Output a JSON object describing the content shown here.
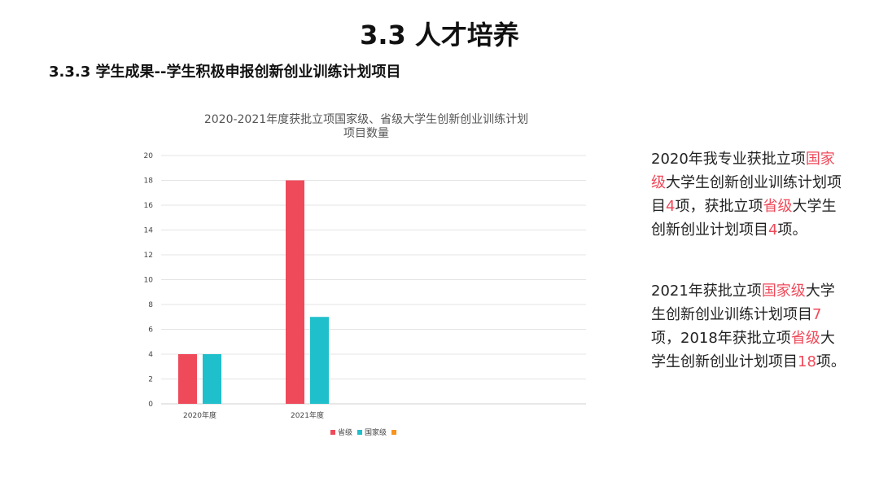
{
  "header": {
    "title": "3.3 人才培养",
    "subtitle": "3.3.3 学生成果--学生积极申报创新创业训练计划项目"
  },
  "chart_data": {
    "type": "bar",
    "title_lines": [
      "2020-2021年度获批立项国家级、省级大学生创新创业训练计划",
      "项目数量"
    ],
    "categories": [
      "2020年度",
      "2021年度"
    ],
    "series": [
      {
        "name": "省级",
        "values": [
          4,
          18
        ],
        "color": "#ef4a5a"
      },
      {
        "name": "国家级",
        "values": [
          4,
          7
        ],
        "color": "#1fbfcb"
      },
      {
        "name": "",
        "values": [
          null,
          null
        ],
        "color": "#f7941d"
      }
    ],
    "y_ticks": [
      0,
      2,
      4,
      6,
      8,
      10,
      12,
      14,
      16,
      18,
      20
    ],
    "ylim": [
      0,
      20
    ],
    "grid": true,
    "legend": "bottom-center"
  },
  "description": {
    "p1": [
      {
        "t": "2020年我专业获批立项",
        "hl": false
      },
      {
        "t": "国家级",
        "hl": true
      },
      {
        "t": "大学生创新创业训练计划项目",
        "hl": false
      },
      {
        "t": "4",
        "hl": true
      },
      {
        "t": "项，获批立项",
        "hl": false
      },
      {
        "t": "省级",
        "hl": true
      },
      {
        "t": "大学生创新创业计划项目",
        "hl": false
      },
      {
        "t": "4",
        "hl": true
      },
      {
        "t": "项。",
        "hl": false
      }
    ],
    "p2": [
      {
        "t": "2021年获批立项",
        "hl": false
      },
      {
        "t": "国家级",
        "hl": true
      },
      {
        "t": "大学生创新创业训练计划项目",
        "hl": false
      },
      {
        "t": "7",
        "hl": true
      },
      {
        "t": "项，2018年获批立项",
        "hl": false
      },
      {
        "t": "省级",
        "hl": true
      },
      {
        "t": "大学生创新创业计划项目",
        "hl": false
      },
      {
        "t": "18",
        "hl": true
      },
      {
        "t": "项。",
        "hl": false
      }
    ],
    "highlight_color": "#ef4a5a"
  }
}
